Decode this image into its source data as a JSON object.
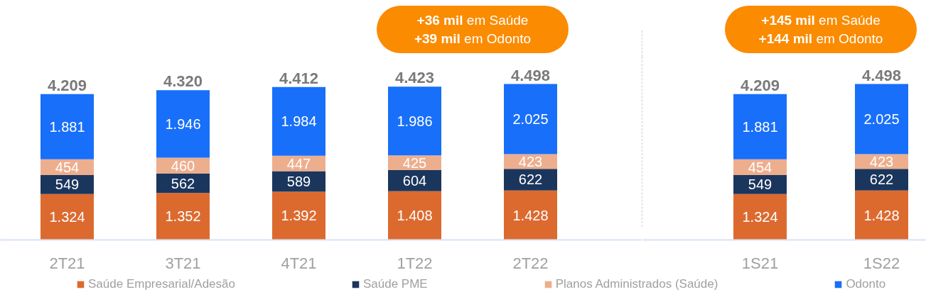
{
  "chart_data": [
    {
      "type": "bar",
      "stacked": true,
      "categories": [
        "2T21",
        "3T21",
        "4T21",
        "1T22",
        "2T22"
      ],
      "series": [
        {
          "name": "Saúde Empresarial/Adesão",
          "color": "#dc6a2f",
          "values": [
            1324,
            1352,
            1392,
            1408,
            1428
          ],
          "value_labels": [
            "1.324",
            "1.352",
            "1.392",
            "1.408",
            "1.428"
          ]
        },
        {
          "name": "Saúde PME",
          "color": "#1b365d",
          "values": [
            549,
            562,
            589,
            604,
            622
          ],
          "value_labels": [
            "549",
            "562",
            "589",
            "604",
            "622"
          ]
        },
        {
          "name": "Planos Administrados (Saúde)",
          "color": "#edae8d",
          "values": [
            454,
            460,
            447,
            425,
            423
          ],
          "value_labels": [
            "454",
            "460",
            "447",
            "425",
            "423"
          ]
        },
        {
          "name": "Odonto",
          "color": "#186ff9",
          "values": [
            1881,
            1946,
            1984,
            1986,
            2025
          ],
          "value_labels": [
            "1.881",
            "1.946",
            "1.984",
            "1.986",
            "2.025"
          ]
        }
      ],
      "totals": [
        "4.209",
        "4.320",
        "4.412",
        "4.423",
        "4.498"
      ],
      "annotations": [
        "+36 mil em Saúde\n+39 mil em Odonto"
      ],
      "legend": "bottom"
    },
    {
      "type": "bar",
      "stacked": true,
      "categories": [
        "1S21",
        "1S22"
      ],
      "series": [
        {
          "color": "#dc6a2f",
          "values": [
            1324,
            1428
          ],
          "value_labels": [
            "1.324",
            "1.428"
          ]
        },
        {
          "color": "#1b365d",
          "values": [
            549,
            622
          ],
          "value_labels": [
            "549",
            "622"
          ]
        },
        {
          "color": "#edae8d",
          "values": [
            454,
            423
          ],
          "value_labels": [
            "454",
            "423"
          ]
        },
        {
          "color": "#186ff9",
          "values": [
            1881,
            2025
          ],
          "value_labels": [
            "1.881",
            "2.025"
          ]
        }
      ],
      "totals": [
        "4.209",
        "4.498"
      ],
      "annotations": [
        "+145 mil em Saúde\n+144 mil em Odonto"
      ]
    }
  ]
}
